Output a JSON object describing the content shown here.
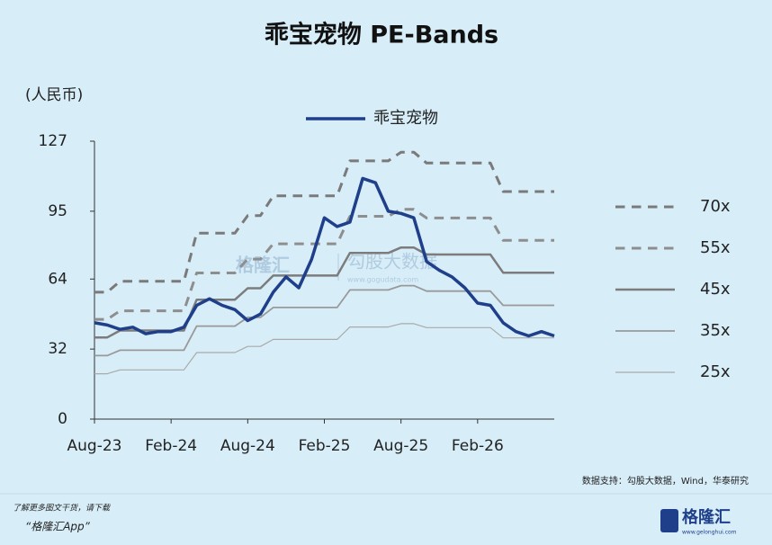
{
  "chart_data": {
    "type": "line",
    "title": "乖宝宠物 PE-Bands",
    "y_label": "(人民币)",
    "categories": [
      "Aug-23",
      null,
      null,
      null,
      null,
      null,
      "Feb-24",
      null,
      null,
      null,
      null,
      null,
      "Aug-24",
      null,
      null,
      null,
      null,
      null,
      "Feb-25",
      null,
      null,
      null,
      null,
      null,
      "Aug-25",
      null,
      null,
      null,
      null,
      null,
      "Feb-26",
      null,
      null,
      null,
      null,
      null,
      null
    ],
    "ylim": [
      0,
      127
    ],
    "yticks": [
      0,
      32,
      64,
      95,
      127
    ],
    "series": [
      {
        "name": "乖宝宠物",
        "color": "#1f3f8a",
        "linestyle": "solid",
        "values": [
          44,
          43,
          41,
          42,
          39,
          40,
          40,
          42,
          52,
          55,
          52,
          50,
          45,
          48,
          58,
          65,
          60,
          73,
          92,
          88,
          90,
          110,
          108,
          95,
          94,
          92,
          72,
          68,
          65,
          60,
          53,
          52,
          44,
          40,
          38,
          40,
          38
        ]
      },
      {
        "name": "70x",
        "color": "#7a7a7a",
        "linestyle": "dashed",
        "values": [
          58,
          58,
          63,
          63,
          63,
          63,
          63,
          63,
          85,
          85,
          85,
          85,
          93,
          93,
          102,
          102,
          102,
          102,
          102,
          102,
          118,
          118,
          118,
          118,
          122,
          122,
          117,
          117,
          117,
          117,
          117,
          117,
          104,
          104,
          104,
          104,
          104
        ]
      },
      {
        "name": "55x",
        "color": "#8e8e8e",
        "linestyle": "dashed",
        "values": [
          45.6,
          45.6,
          49.5,
          49.5,
          49.5,
          49.5,
          49.5,
          49.5,
          66.8,
          66.8,
          66.8,
          66.8,
          73.1,
          73.1,
          80.1,
          80.1,
          80.1,
          80.1,
          80.1,
          80.1,
          92.7,
          92.7,
          92.7,
          92.7,
          95.9,
          95.9,
          91.9,
          91.9,
          91.9,
          91.9,
          91.9,
          91.9,
          81.7,
          81.7,
          81.7,
          81.7,
          81.7
        ]
      },
      {
        "name": "45x",
        "color": "#7c7c7c",
        "linestyle": "solid",
        "values": [
          37.3,
          37.3,
          40.5,
          40.5,
          40.5,
          40.5,
          40.5,
          40.5,
          54.6,
          54.6,
          54.6,
          54.6,
          59.8,
          59.8,
          65.6,
          65.6,
          65.6,
          65.6,
          65.6,
          65.6,
          75.9,
          75.9,
          75.9,
          75.9,
          78.4,
          78.4,
          75.2,
          75.2,
          75.2,
          75.2,
          75.2,
          75.2,
          66.9,
          66.9,
          66.9,
          66.9,
          66.9
        ]
      },
      {
        "name": "35x",
        "color": "#999999",
        "linestyle": "solid",
        "values": [
          29,
          29,
          31.5,
          31.5,
          31.5,
          31.5,
          31.5,
          31.5,
          42.5,
          42.5,
          42.5,
          42.5,
          46.5,
          46.5,
          51,
          51,
          51,
          51,
          51,
          51,
          59,
          59,
          59,
          59,
          61,
          61,
          58.5,
          58.5,
          58.5,
          58.5,
          58.5,
          58.5,
          52,
          52,
          52,
          52,
          52
        ]
      },
      {
        "name": "25x",
        "color": "#aaaaaa",
        "linestyle": "solid",
        "values": [
          20.7,
          20.7,
          22.5,
          22.5,
          22.5,
          22.5,
          22.5,
          22.5,
          30.4,
          30.4,
          30.4,
          30.4,
          33.2,
          33.2,
          36.4,
          36.4,
          36.4,
          36.4,
          36.4,
          36.4,
          42.1,
          42.1,
          42.1,
          42.1,
          43.6,
          43.6,
          41.8,
          41.8,
          41.8,
          41.8,
          41.8,
          41.8,
          37.1,
          37.1,
          37.1,
          37.1,
          37.1
        ]
      }
    ]
  },
  "source": "数据支持：勾股大数据，Wind，华泰研究",
  "watermark": {
    "brand": "格隆汇",
    "partner": "勾股大数据",
    "url": "www.gogudata.com"
  },
  "footer": {
    "line1": "了解更多图文干货，请下载",
    "line2": "“格隆汇App”"
  },
  "logo": {
    "text": "格隆汇",
    "url": "www.gelonghui.com"
  }
}
